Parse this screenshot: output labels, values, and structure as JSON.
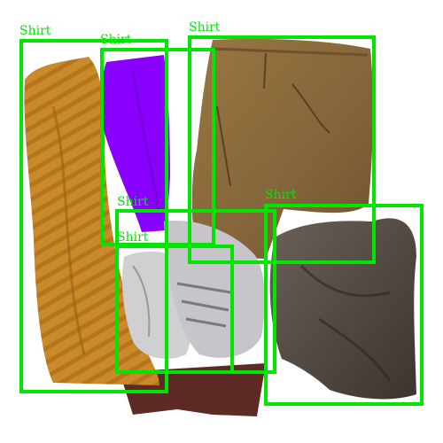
{
  "image": {
    "subject": "pile of clothes",
    "background_color": "#ffffff",
    "item_colors": {
      "striped_shirt": "#c98a2a",
      "purple_fabric": "#8a00ff",
      "pants": "#8a6a3a",
      "dark_shirt": "#5a5048",
      "sneakers": "#d0cfd2",
      "maroon_fabric": "#5e2a26"
    }
  },
  "detections": {
    "box_color": "#00e600",
    "items": [
      {
        "label": "Shirt"
      },
      {
        "label": "Shirt"
      },
      {
        "label": "Shirt"
      },
      {
        "label": "Shirt"
      },
      {
        "label": "Shirt"
      },
      {
        "label": "Shirt"
      }
    ]
  }
}
